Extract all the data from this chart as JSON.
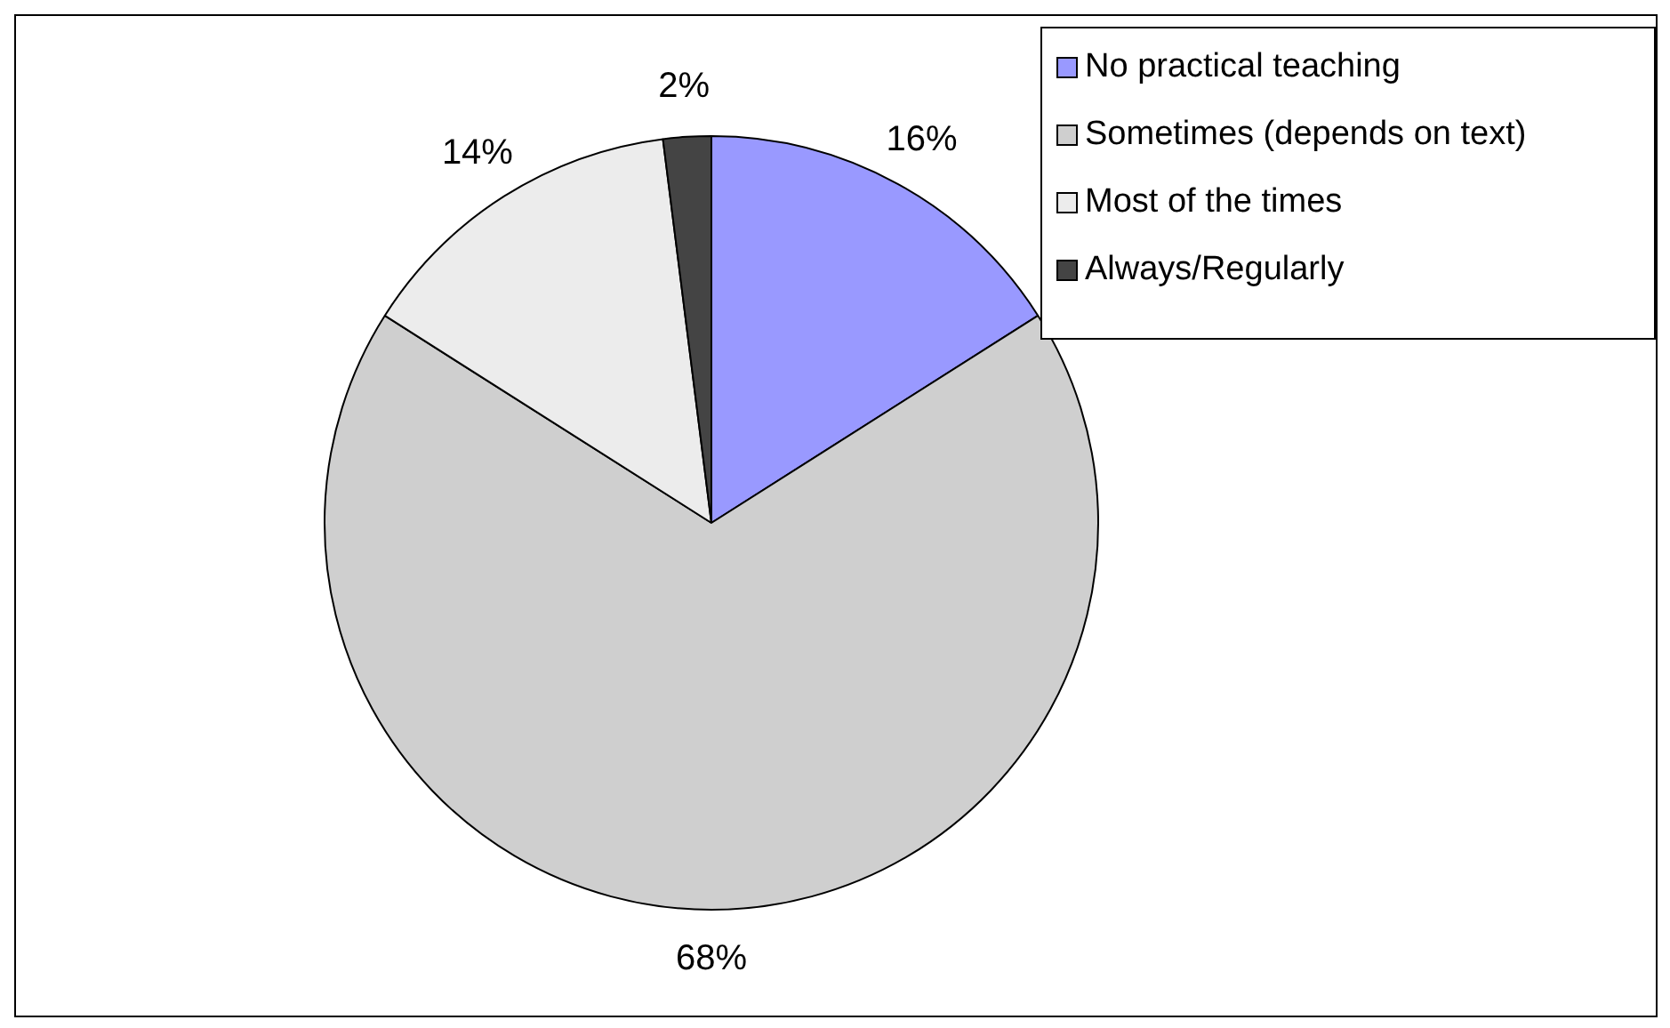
{
  "chart_data": {
    "type": "pie",
    "categories": [
      "No practical teaching",
      "Sometimes (depends on text)",
      "Most of the times",
      "Always/Regularly"
    ],
    "values": [
      16,
      68,
      14,
      2
    ],
    "colors": [
      "#9999ff",
      "#cfcfcf",
      "#ececec",
      "#444444"
    ],
    "value_labels": [
      "16%",
      "68%",
      "14%",
      "2%"
    ],
    "legend": "top right"
  }
}
